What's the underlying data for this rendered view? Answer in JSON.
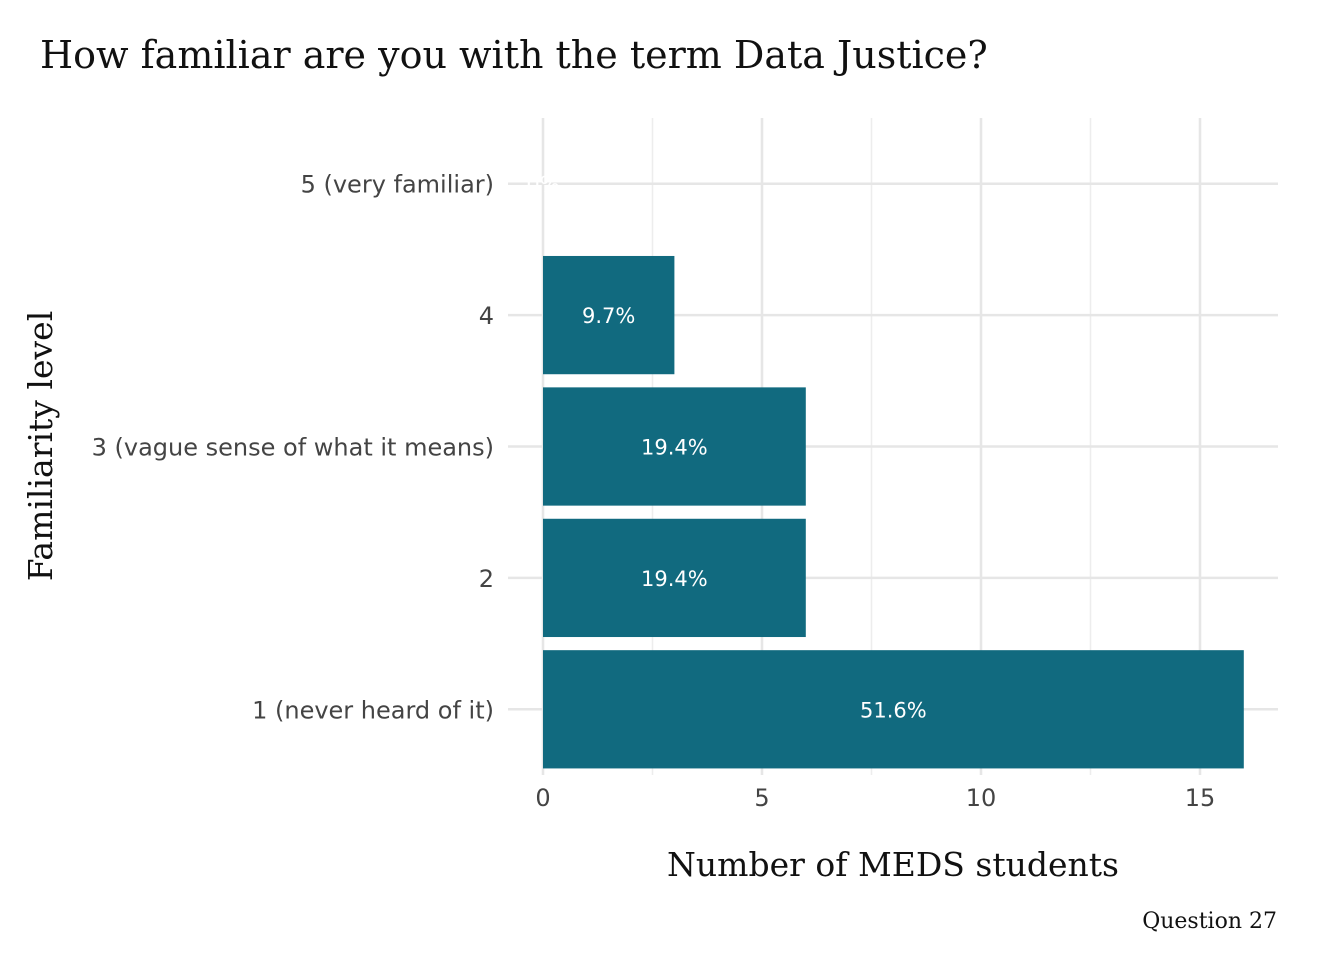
{
  "chart_data": {
    "type": "bar",
    "orientation": "horizontal",
    "title": "How familiar are you with the term Data Justice?",
    "xlabel": "Number of MEDS students",
    "ylabel": "Familiarity level",
    "caption": "Question 27",
    "categories": [
      "1 (never heard of it)",
      "2",
      "3 (vague sense of what it means)",
      "4",
      "5 (very familiar)"
    ],
    "values": [
      16,
      6,
      6,
      3,
      0
    ],
    "labels": [
      "51.6%",
      "19.4%",
      "19.4%",
      "9.7%",
      "0%"
    ],
    "xlim": [
      0,
      16.8
    ],
    "xticks": [
      0,
      5,
      10,
      15
    ],
    "xtick_labels": [
      "0",
      "5",
      "10",
      "15"
    ],
    "bar_color": "#116a7f",
    "grid": true,
    "legend": "none"
  }
}
